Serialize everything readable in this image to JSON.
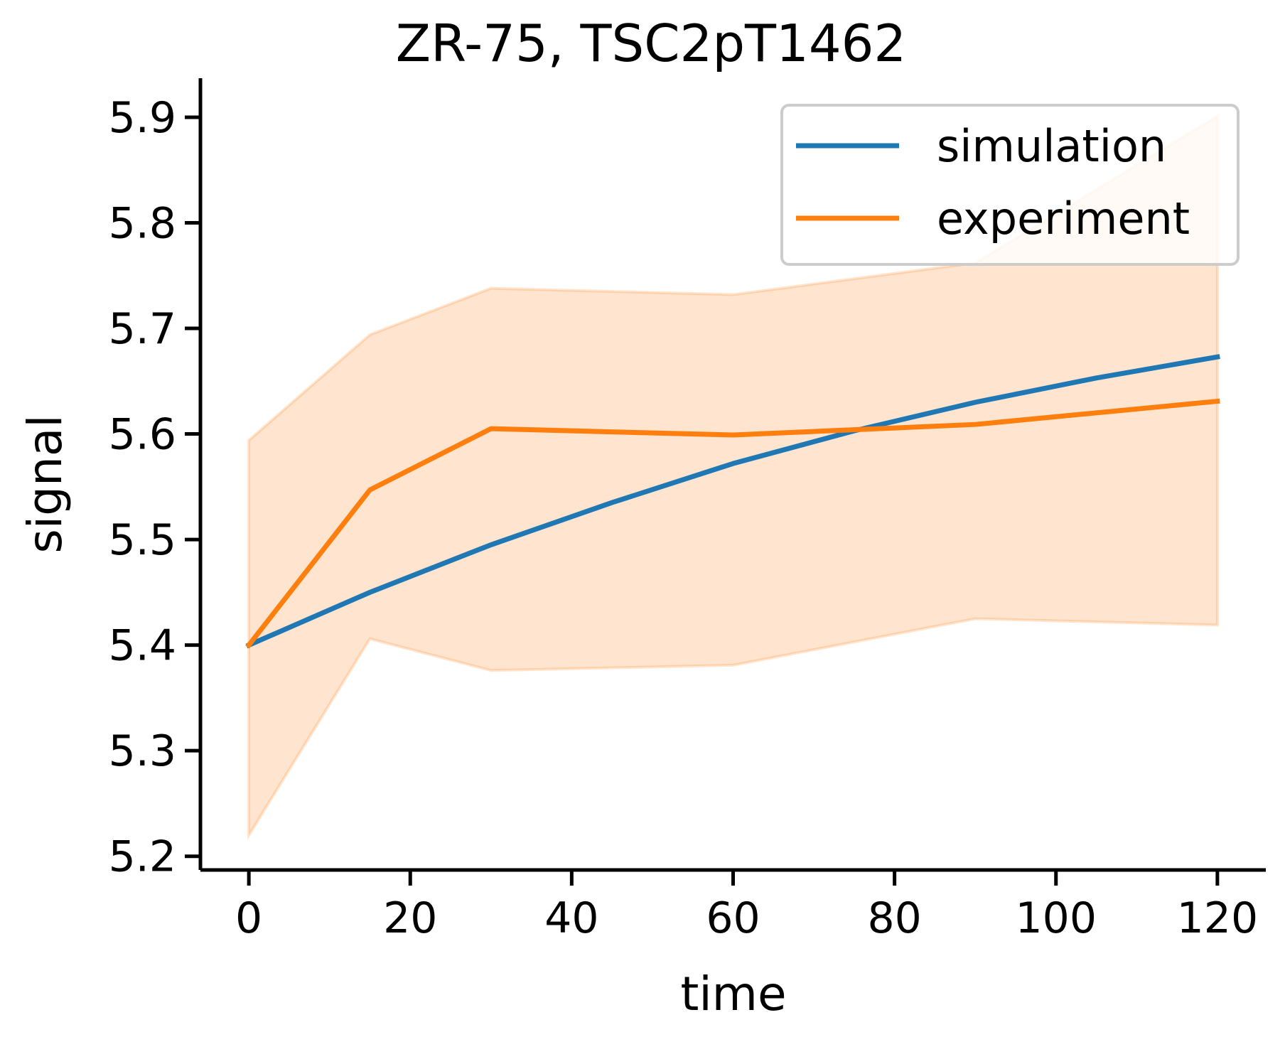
{
  "chart_data": {
    "type": "line",
    "title": "ZR-75, TSC2pT1462",
    "xlabel": "time",
    "ylabel": "signal",
    "xlim": [
      -6,
      126
    ],
    "ylim": [
      5.187,
      5.937
    ],
    "xticks": [
      0,
      20,
      40,
      60,
      80,
      100,
      120
    ],
    "xtick_labels": [
      "0",
      "20",
      "40",
      "60",
      "80",
      "100",
      "120"
    ],
    "yticks": [
      5.2,
      5.3,
      5.4,
      5.5,
      5.6,
      5.7,
      5.8,
      5.9
    ],
    "ytick_labels": [
      "5.2",
      "5.3",
      "5.4",
      "5.5",
      "5.6",
      "5.7",
      "5.8",
      "5.9"
    ],
    "grid": false,
    "legend_position": "top-right",
    "series": [
      {
        "name": "simulation",
        "color": "#1f77b4",
        "x": [
          0,
          15,
          30,
          45,
          60,
          75,
          90,
          105,
          120
        ],
        "y": [
          5.4,
          5.45,
          5.495,
          5.535,
          5.572,
          5.603,
          5.63,
          5.653,
          5.673
        ]
      },
      {
        "name": "experiment",
        "color": "#ff7f0e",
        "x": [
          0,
          15,
          30,
          60,
          90,
          120
        ],
        "y": [
          5.4,
          5.547,
          5.605,
          5.599,
          5.609,
          5.631
        ],
        "band_lower": [
          5.22,
          5.406,
          5.376,
          5.381,
          5.425,
          5.419
        ],
        "band_upper": [
          5.594,
          5.694,
          5.738,
          5.732,
          5.762,
          5.901
        ],
        "band_color": "#ff7f0e",
        "band_opacity": 0.2
      }
    ]
  }
}
